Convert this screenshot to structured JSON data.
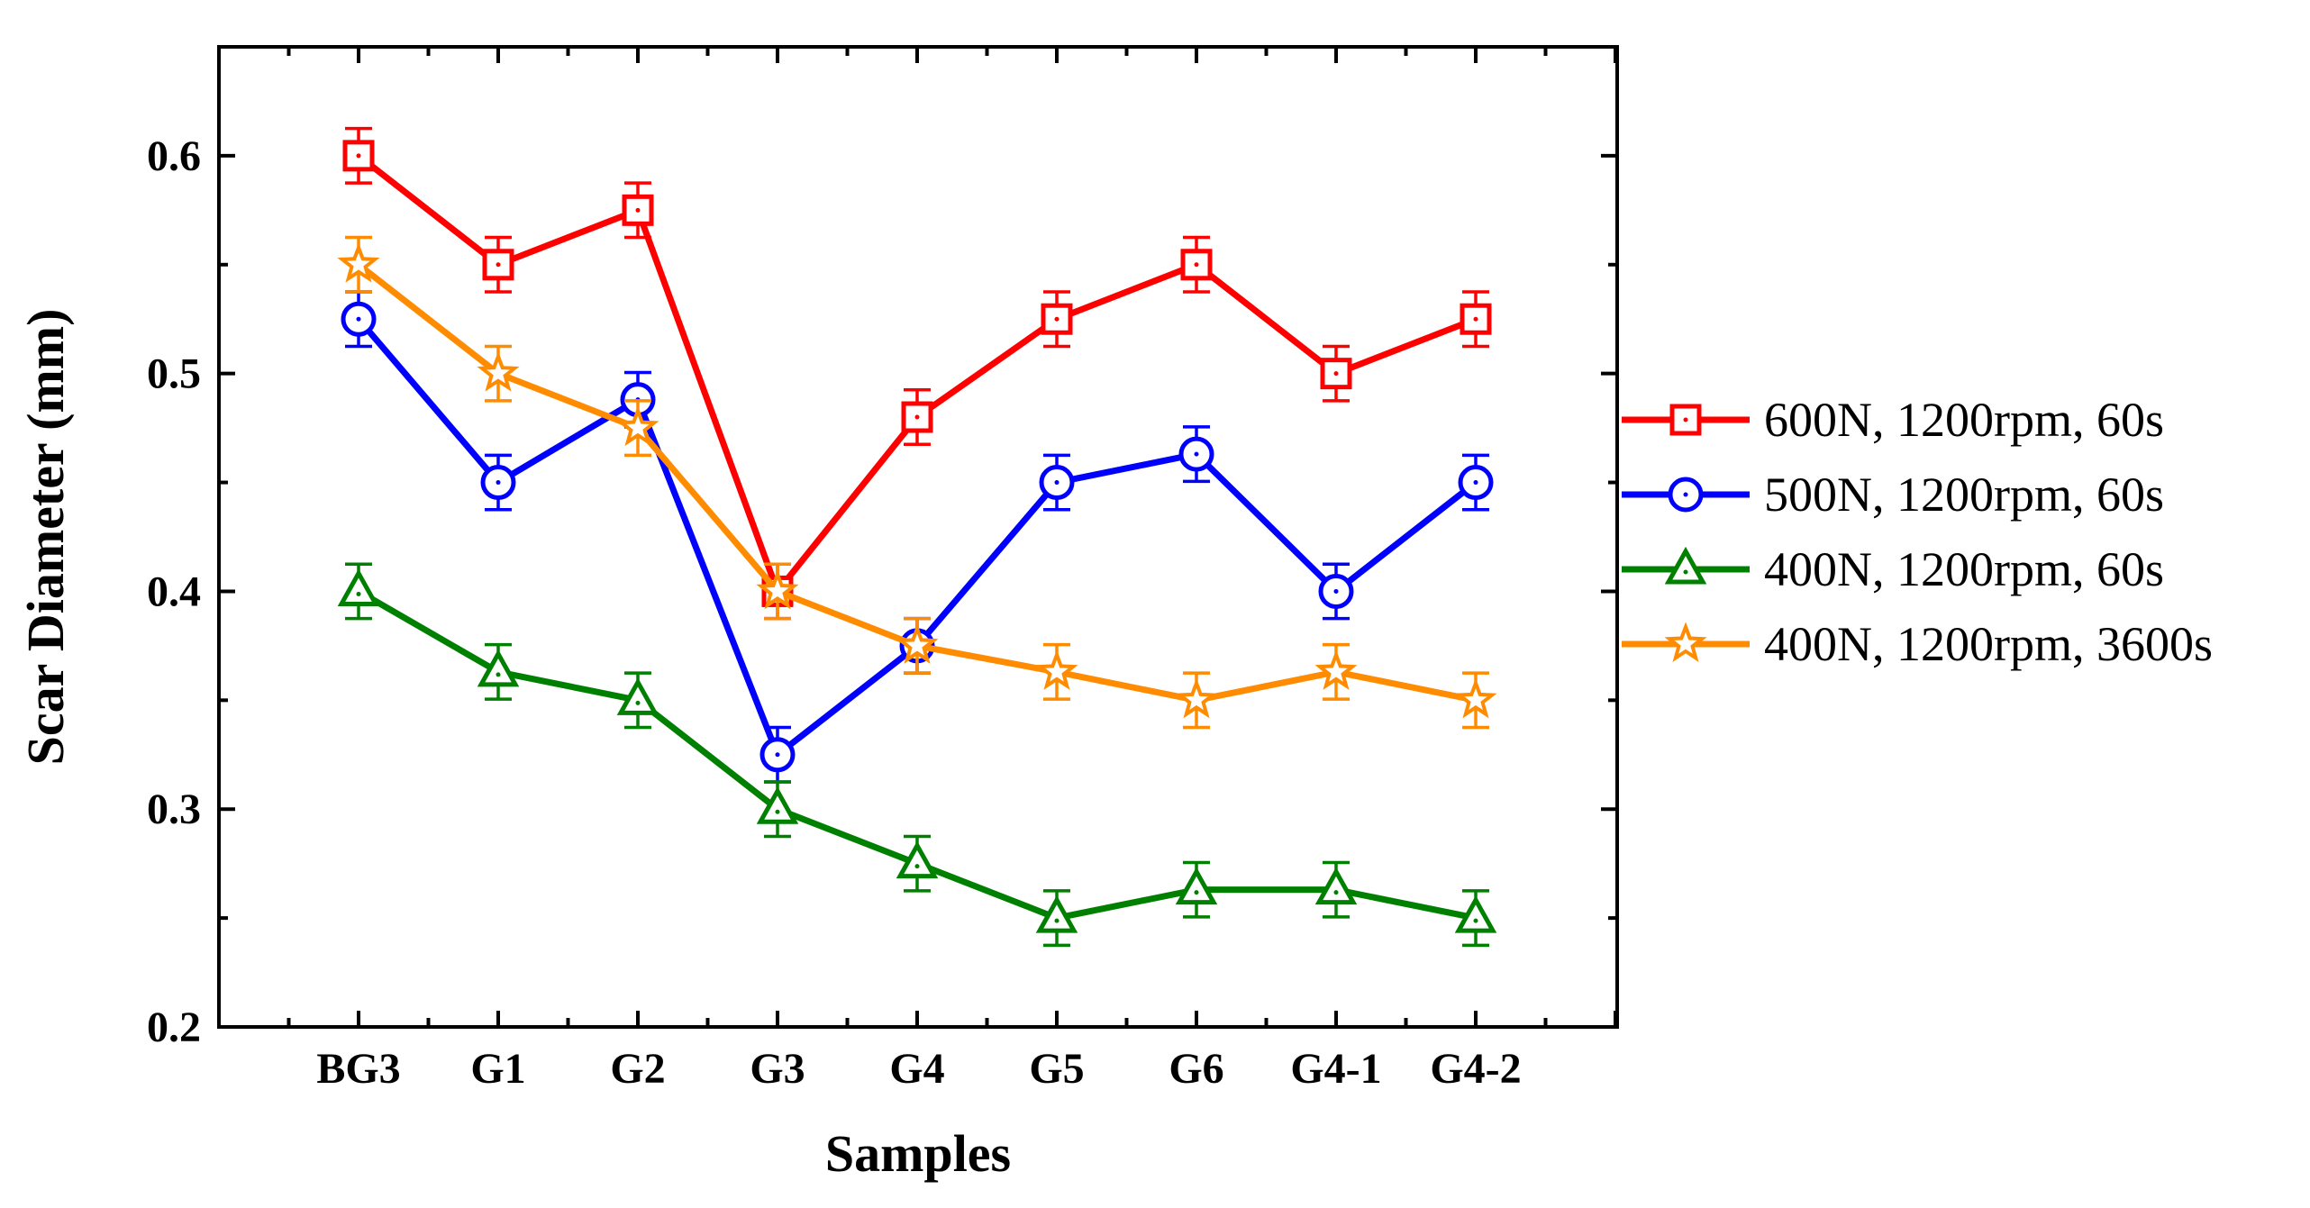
{
  "chart_data": {
    "type": "line",
    "title": "",
    "xlabel": "Samples",
    "ylabel": "Scar Diameter (mm)",
    "categories": [
      "BG3",
      "G1",
      "G2",
      "G3",
      "G4",
      "G5",
      "G6",
      "G4-1",
      "G4-2"
    ],
    "ylim": [
      0.2,
      0.65
    ],
    "yticks": [
      0.2,
      0.3,
      0.4,
      0.5,
      0.6
    ],
    "ytick_labels": [
      "0.2",
      "0.3",
      "0.4",
      "0.5",
      "0.6"
    ],
    "error_bar": 0.0125,
    "legend_position": "right",
    "series": [
      {
        "name": "600N, 1200rpm, 60s",
        "color": "#ff0000",
        "marker": "square",
        "values": [
          0.6,
          0.55,
          0.575,
          0.4,
          0.48,
          0.525,
          0.55,
          0.5,
          0.525
        ]
      },
      {
        "name": "500N, 1200rpm, 60s",
        "color": "#0000ff",
        "marker": "circle",
        "values": [
          0.525,
          0.45,
          0.488,
          0.325,
          0.375,
          0.45,
          0.463,
          0.4,
          0.45
        ]
      },
      {
        "name": "400N, 1200rpm, 60s",
        "color": "#008000",
        "marker": "triangle",
        "values": [
          0.4,
          0.363,
          0.35,
          0.3,
          0.275,
          0.25,
          0.263,
          0.263,
          0.25
        ]
      },
      {
        "name": "400N, 1200rpm, 3600s",
        "color": "#ff8c00",
        "marker": "star",
        "values": [
          0.55,
          0.5,
          0.475,
          0.4,
          0.375,
          0.363,
          0.35,
          0.363,
          0.35
        ]
      }
    ]
  }
}
